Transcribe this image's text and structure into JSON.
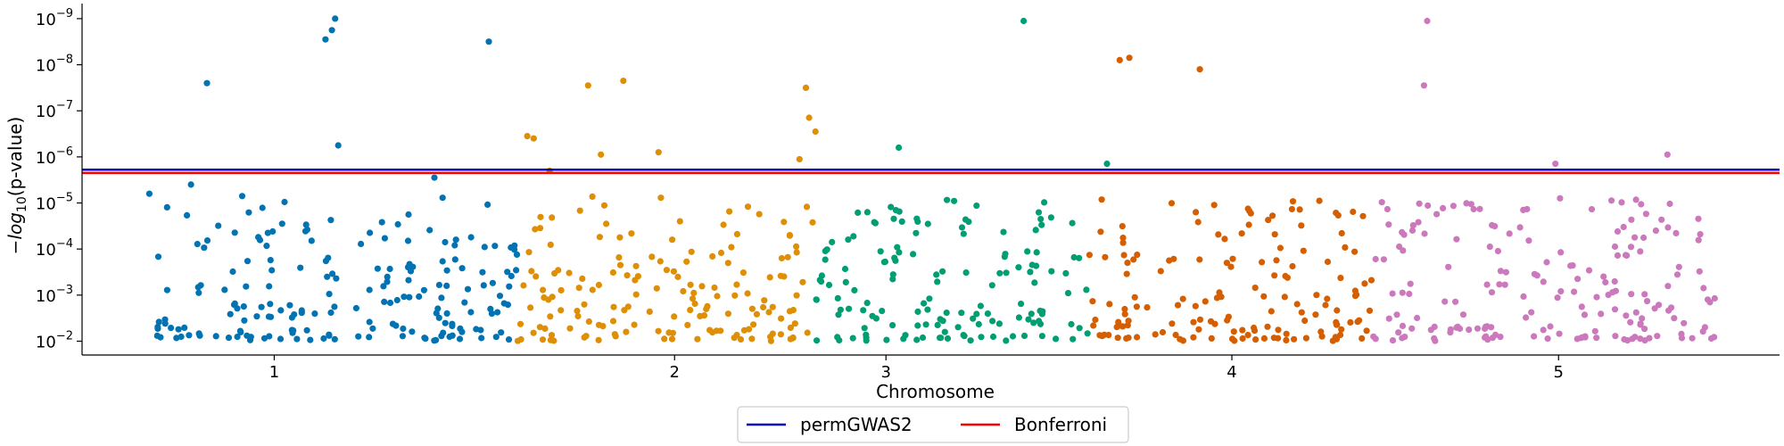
{
  "chart_data": {
    "type": "scatter",
    "title": "",
    "xlabel": "Chromosome",
    "ylabel_parts": [
      "−",
      "log",
      "10",
      "(p-value)"
    ],
    "y_scale": "log",
    "y_ticks": [
      {
        "exp": -9,
        "label_base": "10",
        "label_exp": "−9"
      },
      {
        "exp": -8,
        "label_base": "10",
        "label_exp": "−8"
      },
      {
        "exp": -7,
        "label_base": "10",
        "label_exp": "−7"
      },
      {
        "exp": -6,
        "label_base": "10",
        "label_exp": "−6"
      },
      {
        "exp": -5,
        "label_base": "10",
        "label_exp": "−5"
      },
      {
        "exp": -4,
        "label_base": "10",
        "label_exp": "−4"
      },
      {
        "exp": -3,
        "label_base": "10",
        "label_exp": "−3"
      },
      {
        "exp": -2,
        "label_base": "10",
        "label_exp": "−2"
      }
    ],
    "ylim": [
      -1.7,
      -9.25
    ],
    "xlim": [
      0.4,
      5.7
    ],
    "x_ticks": [
      {
        "value": 1.0,
        "label": "1"
      },
      {
        "value": 2.25,
        "label": "2"
      },
      {
        "value": 2.91,
        "label": "3"
      },
      {
        "value": 3.99,
        "label": "4"
      },
      {
        "value": 5.01,
        "label": "5"
      }
    ],
    "chromosomes": [
      {
        "name": "1",
        "x_range": [
          0.63,
          1.76
        ],
        "color": "#0173b2"
      },
      {
        "name": "2",
        "x_range": [
          1.76,
          2.69
        ],
        "color": "#de8f05"
      },
      {
        "name": "3",
        "x_range": [
          2.69,
          3.54
        ],
        "color": "#029e73"
      },
      {
        "name": "4",
        "x_range": [
          3.54,
          4.43
        ],
        "color": "#d55e00"
      },
      {
        "name": "5",
        "x_range": [
          4.43,
          5.5
        ],
        "color": "#cc78bc"
      }
    ],
    "thresholds": [
      {
        "name": "permGWAS2",
        "neg_log10_p": 5.72,
        "color": "#0000cc"
      },
      {
        "name": "Bonferroni",
        "neg_log10_p": 5.7,
        "color": "#ff0000"
      }
    ],
    "significant_points": [
      {
        "chrom": "1",
        "x": 0.79,
        "neg_log10_p": 7.6
      },
      {
        "chrom": "1",
        "x": 0.74,
        "neg_log10_p": 5.4
      },
      {
        "chrom": "1",
        "x": 0.61,
        "neg_log10_p": 5.2
      },
      {
        "chrom": "1",
        "x": 0.9,
        "neg_log10_p": 5.15
      },
      {
        "chrom": "1",
        "x": 1.16,
        "neg_log10_p": 8.55
      },
      {
        "chrom": "1",
        "x": 1.18,
        "neg_log10_p": 8.75
      },
      {
        "chrom": "1",
        "x": 1.19,
        "neg_log10_p": 9.0
      },
      {
        "chrom": "1",
        "x": 1.2,
        "neg_log10_p": 6.25
      },
      {
        "chrom": "1",
        "x": 1.67,
        "neg_log10_p": 8.5
      },
      {
        "chrom": "1",
        "x": 1.5,
        "neg_log10_p": 5.55
      },
      {
        "chrom": "2",
        "x": 1.79,
        "neg_log10_p": 6.45
      },
      {
        "chrom": "2",
        "x": 1.81,
        "neg_log10_p": 6.4
      },
      {
        "chrom": "2",
        "x": 2.09,
        "neg_log10_p": 7.65
      },
      {
        "chrom": "2",
        "x": 1.98,
        "neg_log10_p": 7.55
      },
      {
        "chrom": "2",
        "x": 2.02,
        "neg_log10_p": 6.05
      },
      {
        "chrom": "2",
        "x": 2.2,
        "neg_log10_p": 6.1
      },
      {
        "chrom": "2",
        "x": 2.66,
        "neg_log10_p": 7.5
      },
      {
        "chrom": "2",
        "x": 2.67,
        "neg_log10_p": 6.85
      },
      {
        "chrom": "2",
        "x": 2.69,
        "neg_log10_p": 6.55
      },
      {
        "chrom": "2",
        "x": 2.64,
        "neg_log10_p": 5.95
      },
      {
        "chrom": "2",
        "x": 1.86,
        "neg_log10_p": 5.7
      },
      {
        "chrom": "3",
        "x": 2.95,
        "neg_log10_p": 6.2
      },
      {
        "chrom": "3",
        "x": 3.34,
        "neg_log10_p": 8.95
      },
      {
        "chrom": "3",
        "x": 3.6,
        "neg_log10_p": 5.85
      },
      {
        "chrom": "4",
        "x": 3.64,
        "neg_log10_p": 8.1
      },
      {
        "chrom": "4",
        "x": 3.67,
        "neg_log10_p": 8.15
      },
      {
        "chrom": "4",
        "x": 3.89,
        "neg_log10_p": 7.9
      },
      {
        "chrom": "5",
        "x": 4.6,
        "neg_log10_p": 8.95
      },
      {
        "chrom": "5",
        "x": 4.59,
        "neg_log10_p": 7.55
      },
      {
        "chrom": "5",
        "x": 5.0,
        "neg_log10_p": 5.85
      },
      {
        "chrom": "5",
        "x": 5.35,
        "neg_log10_p": 6.05
      }
    ],
    "background_points_note": "",
    "legend": {
      "placement": "bottom-center",
      "entries": [
        {
          "label": "permGWAS2",
          "color": "#0000cc"
        },
        {
          "label": "Bonferroni",
          "color": "#ff0000"
        }
      ]
    },
    "grid": false
  }
}
